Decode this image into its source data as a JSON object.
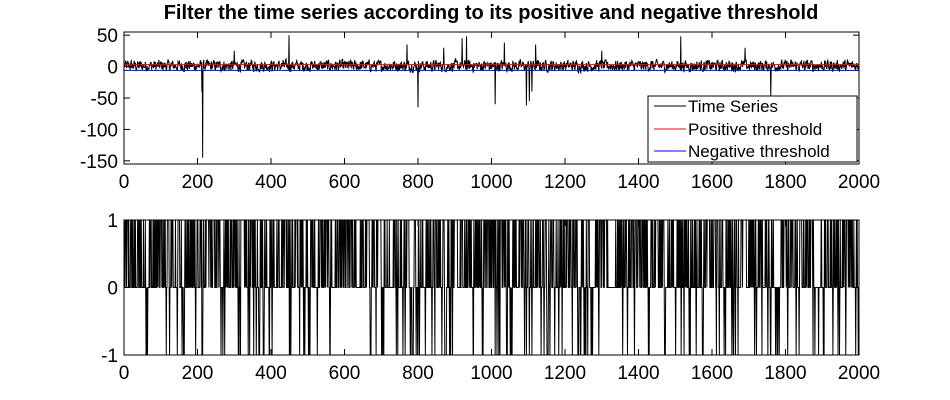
{
  "chart_data": [
    {
      "type": "line",
      "title": "Filter the time series according to its positive and negative threshold",
      "xlim": [
        0,
        2000
      ],
      "ylim": [
        -155,
        55
      ],
      "xticks": [
        0,
        200,
        400,
        600,
        800,
        1000,
        1200,
        1400,
        1600,
        1800,
        2000
      ],
      "yticks": [
        50,
        0,
        -50,
        -100,
        -150
      ],
      "legend": {
        "placement": "bottom-right",
        "entries": [
          "Time Series",
          "Positive threshold",
          "Negative threshold"
        ]
      },
      "series": [
        {
          "name": "Time Series",
          "color": "#000000",
          "x_range": [
            1,
            2000
          ],
          "typical_range": [
            -15,
            20
          ],
          "spikes": [
            {
              "x": 214,
              "y": -145
            },
            {
              "x": 212,
              "y": -40
            },
            {
              "x": 449,
              "y": 50
            },
            {
              "x": 800,
              "y": -65
            },
            {
              "x": 932,
              "y": 48
            },
            {
              "x": 920,
              "y": 45
            },
            {
              "x": 1010,
              "y": -60
            },
            {
              "x": 1095,
              "y": -62
            },
            {
              "x": 1103,
              "y": -55
            },
            {
              "x": 1110,
              "y": -40
            },
            {
              "x": 1035,
              "y": 38
            },
            {
              "x": 1120,
              "y": 35
            },
            {
              "x": 770,
              "y": 35
            },
            {
              "x": 1515,
              "y": 48
            },
            {
              "x": 1760,
              "y": -48
            },
            {
              "x": 1690,
              "y": 30
            },
            {
              "x": 870,
              "y": 30
            },
            {
              "x": 300,
              "y": 25
            },
            {
              "x": 1300,
              "y": 25
            }
          ]
        },
        {
          "name": "Positive threshold",
          "color": "#ff0000",
          "y": 3
        },
        {
          "name": "Negative threshold",
          "color": "#0000ff",
          "y": -6
        }
      ]
    },
    {
      "type": "line",
      "title": "",
      "xlim": [
        0,
        2000
      ],
      "ylim": [
        -1,
        1
      ],
      "xticks": [
        0,
        200,
        400,
        600,
        800,
        1000,
        1200,
        1400,
        1600,
        1800,
        2000
      ],
      "yticks": [
        1,
        0,
        -1
      ],
      "series": [
        {
          "color": "#000000",
          "values_set": [
            -1,
            0,
            1
          ],
          "derived_from": "Time Series thresholded by Positive threshold and Negative threshold"
        }
      ]
    }
  ]
}
